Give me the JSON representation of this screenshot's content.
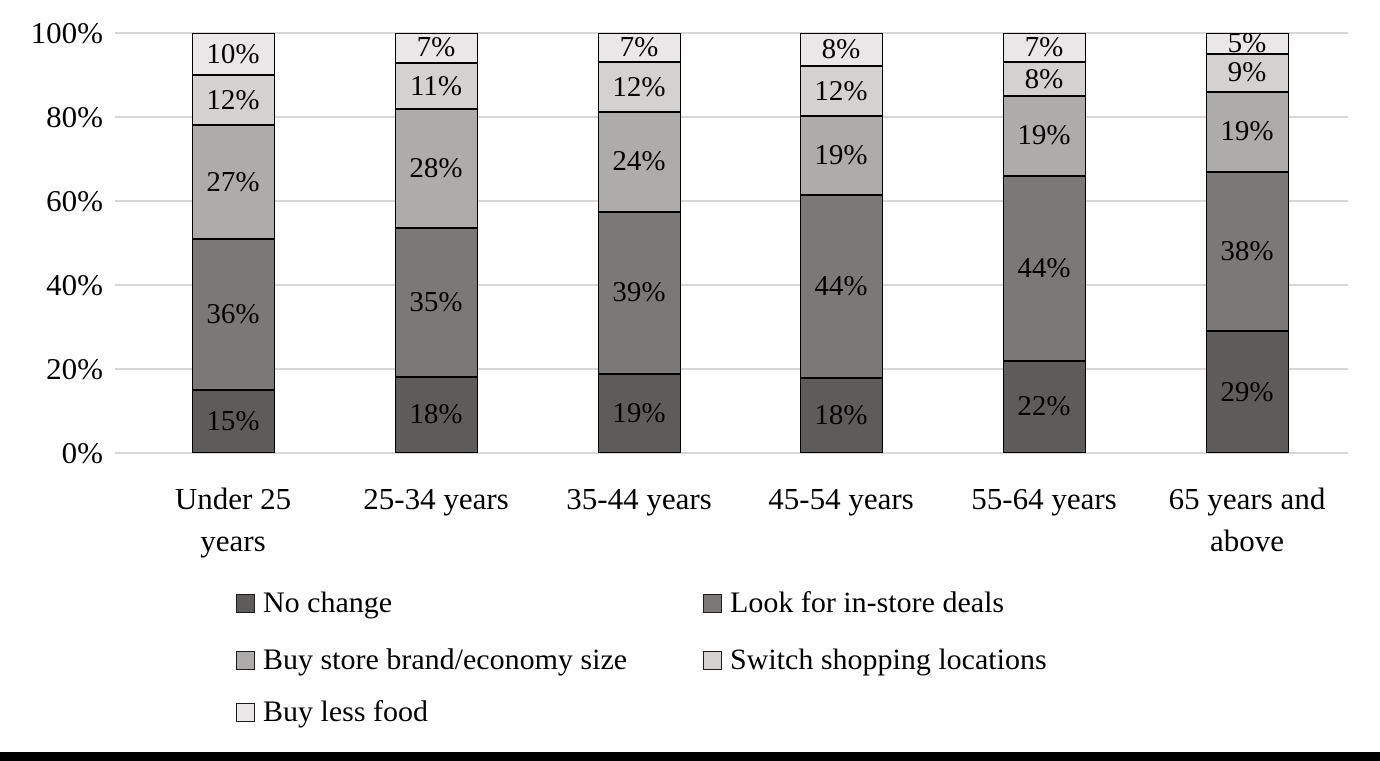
{
  "figure": {
    "background": "#ffffff",
    "bottom_rule_color": "#000000",
    "gridline_color": "#d7d7d7",
    "bar_border_color": "#000000"
  },
  "chart_data": {
    "type": "bar",
    "stacked": true,
    "orientation": "vertical",
    "title": "",
    "xlabel": "",
    "ylabel": "",
    "unit": "%",
    "grid": true,
    "data_labels": true,
    "legend_position": "bottom",
    "y_axis": {
      "min": 0,
      "max": 100,
      "tick_labels": [
        "0%",
        "20%",
        "40%",
        "60%",
        "80%",
        "100%"
      ]
    },
    "categories": [
      "Under 25\nyears",
      "25-34 years",
      "35-44 years",
      "45-54 years",
      "55-64 years",
      "65 years and\nabove"
    ],
    "series": [
      {
        "name": "No change",
        "color": "#5e5b5b",
        "values": [
          15,
          18,
          19,
          18,
          22,
          29
        ]
      },
      {
        "name": "Look for in-store deals",
        "color": "#7b7878",
        "values": [
          36,
          35,
          39,
          44,
          44,
          38
        ]
      },
      {
        "name": "Buy store brand/economy size",
        "color": "#aeabab",
        "values": [
          27,
          28,
          24,
          19,
          19,
          19
        ]
      },
      {
        "name": "Switch shopping locations",
        "color": "#d4d1d1",
        "values": [
          12,
          11,
          12,
          12,
          8,
          9
        ]
      },
      {
        "name": "Buy less food",
        "color": "#e9e7e7",
        "values": [
          10,
          7,
          7,
          8,
          7,
          5
        ]
      }
    ],
    "segment_labels": [
      [
        "15%",
        "36%",
        "27%",
        "12%",
        "10%"
      ],
      [
        "18%",
        "35%",
        "28%",
        "11%",
        "7%"
      ],
      [
        "19%",
        "39%",
        "24%",
        "12%",
        "7%"
      ],
      [
        "18%",
        "44%",
        "19%",
        "12%",
        "8%"
      ],
      [
        "22%",
        "44%",
        "19%",
        "8%",
        "7%"
      ],
      [
        "29%",
        "38%",
        "19%",
        "9%",
        "5%"
      ]
    ]
  }
}
